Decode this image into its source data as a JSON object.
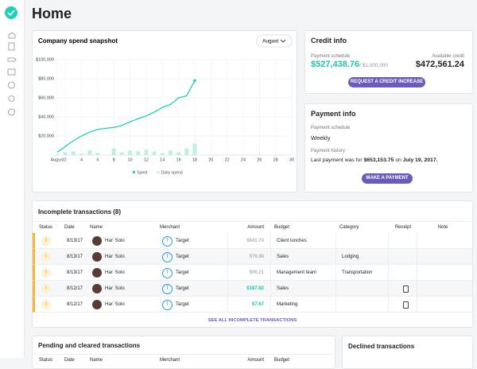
{
  "header": {
    "title": "Home"
  },
  "chart_data": {
    "type": "line",
    "title": "Company spend snapshot",
    "period_selector": "August",
    "x": [
      1,
      2,
      3,
      4,
      5,
      6,
      7,
      8,
      9,
      10,
      11,
      12,
      13,
      14,
      15,
      16,
      17,
      18
    ],
    "series": [
      {
        "name": "Spent",
        "mark": "line",
        "color": "#1fd1b5",
        "values": [
          3000,
          9000,
          15000,
          20000,
          24000,
          27000,
          28000,
          29000,
          31000,
          35000,
          38000,
          41000,
          45000,
          50000,
          53000,
          60000,
          62000,
          78000
        ]
      },
      {
        "name": "Daily spend",
        "mark": "bar",
        "color": "#bff0e6",
        "values": [
          1000,
          3000,
          4000,
          1500,
          5000,
          2500,
          0,
          7000,
          3000,
          5000,
          4000,
          6000,
          4000,
          2000,
          5000,
          3000,
          7000,
          12000
        ]
      }
    ],
    "xlim": [
      1,
      30
    ],
    "xticks": [
      {
        "value": 1,
        "label": "August"
      },
      2,
      4,
      6,
      8,
      10,
      12,
      14,
      16,
      18,
      20,
      22,
      24,
      26,
      28,
      30
    ],
    "ylim": [
      0,
      100000
    ],
    "yticks": [
      {
        "value": 20000,
        "label": "$20,000"
      },
      {
        "value": 40000,
        "label": "$40,000"
      },
      {
        "value": 60000,
        "label": "$60,000"
      },
      {
        "value": 80000,
        "label": "$80,000"
      },
      {
        "value": 100000,
        "label": "$100,000"
      }
    ],
    "grid": true,
    "legend": "bottom"
  },
  "credit": {
    "title": "Credit info",
    "schedule_label": "Payment schedule",
    "used": "$527,438.76",
    "limit": "/ $1,000,000",
    "available_label": "Available credit",
    "available": "$472,561.24",
    "button": "REQUEST A CREDIT INCREASE"
  },
  "payment": {
    "title": "Payment info",
    "schedule_label": "Payment schedule",
    "schedule": "Weekly",
    "history_label": "Payment history",
    "history_prefix": "Last payment was for",
    "history_amount": "$653,153.75",
    "history_on": "on",
    "history_date": "July 19, 2017.",
    "button": "MAKE A PAYMENT"
  },
  "incomplete": {
    "title": "Incomplete transactions (8)",
    "headers": [
      "Status",
      "Date",
      "Name",
      "Merchant",
      "Amount",
      "Budget",
      "Category",
      "Receipt",
      "Note"
    ],
    "rows": [
      {
        "status": "!",
        "date": "8/13/17",
        "name": "Han Solo",
        "merchant_initial": "T",
        "merchant": "Target",
        "amount": "$641.74",
        "amount_color": "#b0b4bb",
        "budget": "Client lunches",
        "category": "",
        "receipt": false
      },
      {
        "status": "!",
        "date": "8/13/17",
        "name": "Han Solo",
        "merchant_initial": "T",
        "merchant": "Target",
        "amount": "$76.88",
        "amount_color": "#b0b4bb",
        "budget": "Sales",
        "category": "Lodging",
        "receipt": false
      },
      {
        "status": "!",
        "date": "8/13/17",
        "name": "Han Solo",
        "merchant_initial": "T",
        "merchant": "Target",
        "amount": "$98.21",
        "amount_color": "#b0b4bb",
        "budget": "Management team",
        "category": "Transportation",
        "receipt": false
      },
      {
        "status": "!",
        "date": "8/12/17",
        "name": "Han Solo",
        "merchant_initial": "T",
        "merchant": "Target",
        "amount": "$187.82",
        "amount_color": "#1fc3ad",
        "budget": "Sales",
        "category": "",
        "receipt": true
      },
      {
        "status": "!",
        "date": "8/12/17",
        "name": "Han Solo",
        "merchant_initial": "T",
        "merchant": "Target",
        "amount": "$7.67",
        "amount_color": "#1fc3ad",
        "budget": "Marketing",
        "category": "",
        "receipt": true
      }
    ],
    "footer": "SEE ALL INCOMPLETE TRANSACTIONS"
  },
  "pending": {
    "title": "Pending and cleared transactions",
    "headers": [
      "Status",
      "Date",
      "Name",
      "Merchant",
      "Amount",
      "Budget"
    ]
  },
  "declined": {
    "title": "Declined transactions"
  }
}
